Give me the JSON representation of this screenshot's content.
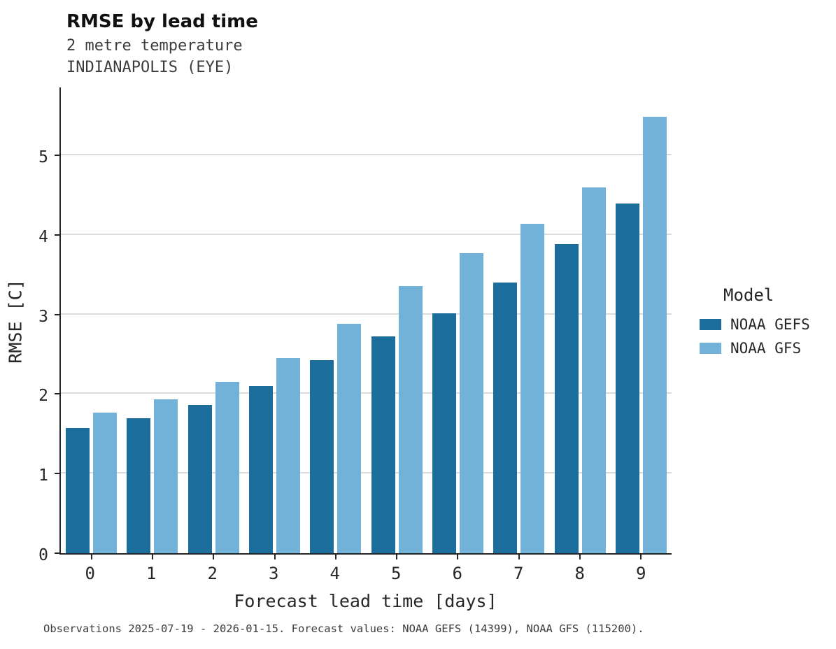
{
  "title": "RMSE by lead time",
  "subtitle_variable": "2 metre temperature",
  "subtitle_location": "INDIANAPOLIS (EYE)",
  "caption": "Observations 2025-07-19 - 2026-01-15. Forecast values: NOAA GEFS (14399), NOAA GFS (115200).",
  "legend": {
    "title": "Model",
    "entries": [
      {
        "label": "NOAA GEFS",
        "color": "#1b6d9b"
      },
      {
        "label": "NOAA GFS",
        "color": "#72b2d8"
      }
    ]
  },
  "colors": {
    "noaa_gefs": "#1b6d9b",
    "noaa_gfs": "#72b2d8",
    "gridline": "#dcdcdc",
    "axis": "#262626"
  },
  "chart_data": {
    "type": "bar",
    "title": "RMSE by lead time",
    "subtitle": [
      "2 metre temperature",
      "INDIANAPOLIS (EYE)"
    ],
    "xlabel": "Forecast lead time [days]",
    "ylabel": "RMSE [C]",
    "categories": [
      "0",
      "1",
      "2",
      "3",
      "4",
      "5",
      "6",
      "7",
      "8",
      "9"
    ],
    "series": [
      {
        "name": "NOAA GEFS",
        "color": "#1b6d9b",
        "values": [
          1.58,
          1.7,
          1.87,
          2.11,
          2.43,
          2.73,
          3.02,
          3.41,
          3.9,
          4.41
        ]
      },
      {
        "name": "NOAA GFS",
        "color": "#72b2d8",
        "values": [
          1.77,
          1.94,
          2.16,
          2.46,
          2.89,
          3.37,
          3.78,
          4.15,
          4.61,
          5.5
        ]
      }
    ],
    "ylim": [
      0,
      5.87
    ],
    "yticks": [
      0,
      1,
      2,
      3,
      4,
      5
    ],
    "grid": true,
    "legend_position": "right"
  }
}
